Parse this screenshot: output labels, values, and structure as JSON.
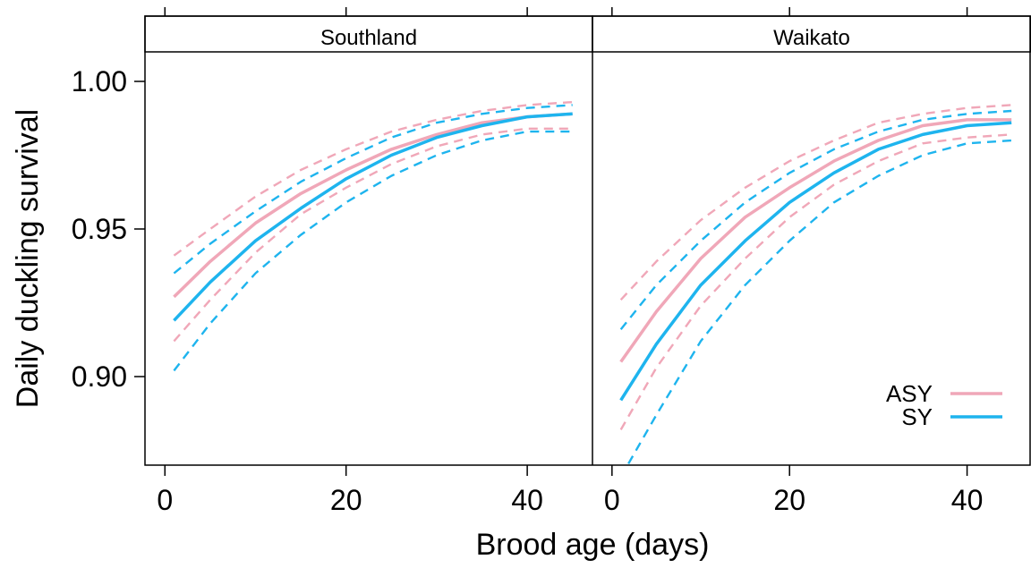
{
  "chart_data": {
    "type": "line",
    "xlabel": "Brood age (days)",
    "ylabel": "Daily duckling survival",
    "xlim": [
      -2.2,
      47.2
    ],
    "ylim": [
      0.87,
      1.01
    ],
    "x_ticks": [
      0,
      20,
      40
    ],
    "x_tick_labels": [
      "0",
      "20",
      "40"
    ],
    "y_ticks": [
      0.9,
      0.95,
      1.0
    ],
    "y_tick_labels": [
      "0.90",
      "0.95",
      "1.00"
    ],
    "grid": false,
    "legend": {
      "position": "bottom-right of Waikato panel",
      "entries": [
        {
          "label": "ASY",
          "color": "#F0A7B8"
        },
        {
          "label": "SY",
          "color": "#1EB4EE"
        }
      ]
    },
    "panels": [
      {
        "strip": "Southland",
        "series": [
          {
            "name": "ASY",
            "color": "#F0A7B8",
            "line": "solid",
            "x": [
              1,
              5,
              10,
              15,
              20,
              25,
              30,
              35,
              40,
              45
            ],
            "y": [
              0.927,
              0.939,
              0.952,
              0.962,
              0.97,
              0.977,
              0.982,
              0.986,
              0.988,
              0.989
            ]
          },
          {
            "name": "ASY",
            "color": "#F0A7B8",
            "line": "dashed",
            "x": [
              1,
              5,
              10,
              15,
              20,
              25,
              30,
              35,
              40,
              45
            ],
            "y": [
              0.941,
              0.95,
              0.961,
              0.97,
              0.977,
              0.983,
              0.987,
              0.99,
              0.992,
              0.993
            ]
          },
          {
            "name": "ASY",
            "color": "#F0A7B8",
            "line": "dashed",
            "x": [
              1,
              5,
              10,
              15,
              20,
              25,
              30,
              35,
              40,
              45
            ],
            "y": [
              0.912,
              0.926,
              0.942,
              0.955,
              0.964,
              0.972,
              0.978,
              0.982,
              0.984,
              0.984
            ]
          },
          {
            "name": "SY",
            "color": "#1EB4EE",
            "line": "solid",
            "x": [
              1,
              5,
              10,
              15,
              20,
              25,
              30,
              35,
              40,
              45
            ],
            "y": [
              0.919,
              0.932,
              0.946,
              0.957,
              0.967,
              0.975,
              0.981,
              0.985,
              0.988,
              0.989
            ]
          },
          {
            "name": "SY",
            "color": "#1EB4EE",
            "line": "dashed",
            "x": [
              1,
              5,
              10,
              15,
              20,
              25,
              30,
              35,
              40,
              45
            ],
            "y": [
              0.935,
              0.945,
              0.956,
              0.966,
              0.974,
              0.981,
              0.986,
              0.989,
              0.991,
              0.992
            ]
          },
          {
            "name": "SY",
            "color": "#1EB4EE",
            "line": "dashed",
            "x": [
              1,
              5,
              10,
              15,
              20,
              25,
              30,
              35,
              40,
              45
            ],
            "y": [
              0.902,
              0.918,
              0.935,
              0.948,
              0.959,
              0.968,
              0.975,
              0.98,
              0.983,
              0.983
            ]
          }
        ]
      },
      {
        "strip": "Waikato",
        "series": [
          {
            "name": "ASY",
            "color": "#F0A7B8",
            "line": "solid",
            "x": [
              1,
              5,
              10,
              15,
              20,
              25,
              30,
              35,
              40,
              45
            ],
            "y": [
              0.905,
              0.922,
              0.94,
              0.954,
              0.964,
              0.973,
              0.98,
              0.985,
              0.987,
              0.987
            ]
          },
          {
            "name": "ASY",
            "color": "#F0A7B8",
            "line": "dashed",
            "x": [
              1,
              5,
              10,
              15,
              20,
              25,
              30,
              35,
              40,
              45
            ],
            "y": [
              0.926,
              0.939,
              0.953,
              0.964,
              0.973,
              0.98,
              0.986,
              0.989,
              0.991,
              0.992
            ]
          },
          {
            "name": "ASY",
            "color": "#F0A7B8",
            "line": "dashed",
            "x": [
              1,
              5,
              10,
              15,
              20,
              25,
              30,
              35,
              40,
              45
            ],
            "y": [
              0.882,
              0.903,
              0.924,
              0.94,
              0.954,
              0.965,
              0.973,
              0.979,
              0.981,
              0.982
            ]
          },
          {
            "name": "SY",
            "color": "#1EB4EE",
            "line": "solid",
            "x": [
              1,
              5,
              10,
              15,
              20,
              25,
              30,
              35,
              40,
              45
            ],
            "y": [
              0.892,
              0.911,
              0.931,
              0.946,
              0.959,
              0.969,
              0.977,
              0.982,
              0.985,
              0.986
            ]
          },
          {
            "name": "SY",
            "color": "#1EB4EE",
            "line": "dashed",
            "x": [
              1,
              5,
              10,
              15,
              20,
              25,
              30,
              35,
              40,
              45
            ],
            "y": [
              0.916,
              0.931,
              0.946,
              0.959,
              0.969,
              0.977,
              0.983,
              0.987,
              0.989,
              0.99
            ]
          },
          {
            "name": "SY",
            "color": "#1EB4EE",
            "line": "dashed",
            "x": [
              1,
              5,
              10,
              15,
              20,
              25,
              30,
              35,
              40,
              45
            ],
            "y": [
              0.866,
              0.887,
              0.912,
              0.931,
              0.946,
              0.959,
              0.968,
              0.975,
              0.979,
              0.98
            ]
          }
        ]
      }
    ]
  }
}
